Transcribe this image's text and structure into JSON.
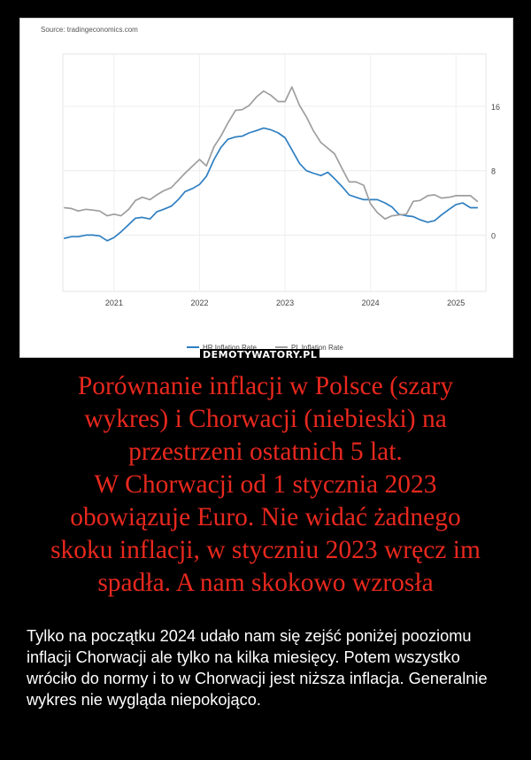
{
  "chart_data": {
    "type": "line",
    "source": "Source: tradingeconomics.com",
    "x_tick_labels": [
      "2021",
      "2022",
      "2023",
      "2024",
      "2025"
    ],
    "y_tick_labels": [
      "16",
      "8",
      "0"
    ],
    "y_ticks": [
      16,
      8,
      0
    ],
    "xlim": [
      2020.4,
      2025.35
    ],
    "ylim": [
      -7,
      22.5
    ],
    "grid": true,
    "legend_position": "bottom",
    "series": [
      {
        "name": "HR Inflation Rate",
        "color": "#2f7fc1",
        "x": [
          2020.42,
          2020.5,
          2020.58,
          2020.67,
          2020.75,
          2020.83,
          2020.92,
          2021.0,
          2021.08,
          2021.17,
          2021.25,
          2021.33,
          2021.42,
          2021.5,
          2021.58,
          2021.67,
          2021.75,
          2021.83,
          2021.92,
          2022.0,
          2022.08,
          2022.17,
          2022.25,
          2022.33,
          2022.42,
          2022.5,
          2022.58,
          2022.67,
          2022.75,
          2022.83,
          2022.92,
          2023.0,
          2023.08,
          2023.17,
          2023.25,
          2023.33,
          2023.42,
          2023.5,
          2023.58,
          2023.67,
          2023.75,
          2023.83,
          2023.92,
          2024.0,
          2024.08,
          2024.17,
          2024.25,
          2024.33,
          2024.42,
          2024.5,
          2024.58,
          2024.67,
          2024.75,
          2024.83,
          2024.92,
          2025.0,
          2025.08,
          2025.17,
          2025.25
        ],
        "values": [
          -0.4,
          -0.2,
          -0.2,
          0.0,
          0.0,
          -0.1,
          -0.7,
          -0.3,
          0.4,
          1.3,
          2.1,
          2.2,
          2.0,
          2.9,
          3.2,
          3.6,
          4.4,
          5.4,
          5.8,
          6.3,
          7.3,
          9.4,
          10.9,
          11.9,
          12.2,
          12.3,
          12.7,
          13.0,
          13.3,
          13.1,
          12.7,
          12.1,
          10.6,
          8.9,
          8.0,
          7.7,
          7.4,
          7.8,
          7.0,
          6.0,
          5.0,
          4.7,
          4.4,
          4.4,
          4.4,
          4.0,
          3.5,
          2.6,
          2.4,
          2.3,
          1.9,
          1.6,
          1.8,
          2.5,
          3.2,
          3.8,
          4.0,
          3.4,
          3.4
        ]
      },
      {
        "name": "PL Inflation Rate",
        "color": "#9e9e9e",
        "x": [
          2020.42,
          2020.5,
          2020.58,
          2020.67,
          2020.75,
          2020.83,
          2020.92,
          2021.0,
          2021.08,
          2021.17,
          2021.25,
          2021.33,
          2021.42,
          2021.5,
          2021.58,
          2021.67,
          2021.75,
          2021.83,
          2021.92,
          2022.0,
          2022.08,
          2022.17,
          2022.25,
          2022.33,
          2022.42,
          2022.5,
          2022.58,
          2022.67,
          2022.75,
          2022.83,
          2022.92,
          2023.0,
          2023.08,
          2023.17,
          2023.25,
          2023.33,
          2023.42,
          2023.5,
          2023.58,
          2023.67,
          2023.75,
          2023.83,
          2023.92,
          2024.0,
          2024.08,
          2024.17,
          2024.25,
          2024.33,
          2024.42,
          2024.5,
          2024.58,
          2024.67,
          2024.75,
          2024.83,
          2024.92,
          2025.0,
          2025.08,
          2025.17,
          2025.25
        ],
        "values": [
          3.4,
          3.3,
          3.0,
          3.2,
          3.1,
          3.0,
          2.4,
          2.6,
          2.4,
          3.2,
          4.3,
          4.7,
          4.4,
          5.0,
          5.5,
          5.9,
          6.8,
          7.7,
          8.6,
          9.4,
          8.6,
          11.0,
          12.3,
          13.9,
          15.5,
          15.6,
          16.1,
          17.2,
          17.9,
          17.4,
          16.6,
          16.6,
          18.4,
          16.1,
          14.7,
          13.0,
          11.5,
          10.8,
          10.1,
          8.2,
          6.6,
          6.6,
          6.2,
          3.9,
          2.8,
          2.0,
          2.4,
          2.5,
          2.6,
          4.2,
          4.3,
          4.9,
          5.0,
          4.6,
          4.7,
          4.9,
          4.9,
          4.9,
          4.2
        ]
      }
    ]
  },
  "watermark": "DEMOTYWATORY.PL",
  "headline": "Porównanie inflacji w Polsce (szary\nwykres) i Chorwacji (niebieski) na\nprzestrzeni ostatnich 5 lat.\nW Chorwacji od 1 stycznia 2023\nobowiązuje Euro. Nie widać żadnego\nskoku inflacji, w styczniu 2023 wręcz im\nspadła. A nam skokowo wzrosła",
  "description": "Tylko na początku 2024 udało nam się zejść poniżej pooziomu inflacji Chorwacji ale tylko na kilka miesięcy. Potem wszystko wróciło do normy i to w Chorwacji jest niższa inflacja. Generalnie wykres nie wygląda niepokojąco."
}
